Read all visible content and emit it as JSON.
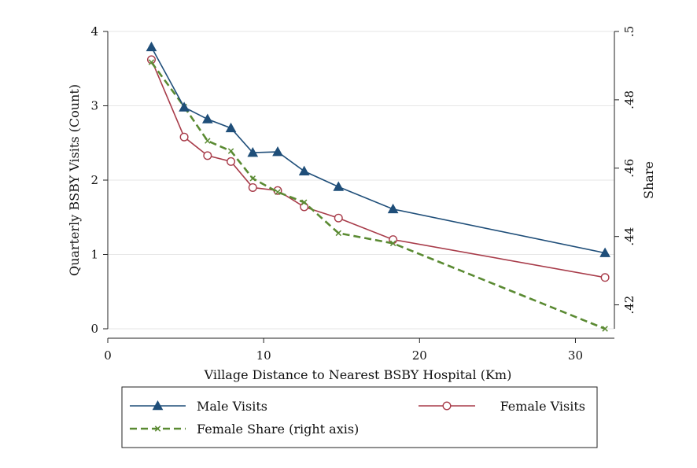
{
  "chart_data": {
    "type": "line",
    "title": "",
    "xlabel": "Village Distance to Nearest BSBY Hospital (Km)",
    "ylabel": "Quarterly BSBY Visits (Count)",
    "y2label": "Share",
    "xlim": [
      0,
      32.5
    ],
    "ylim": [
      0,
      4
    ],
    "y2lim": [
      0.413,
      0.5
    ],
    "x_ticks": [
      0,
      10,
      20,
      30
    ],
    "y_ticks": [
      0,
      1,
      2,
      3,
      4
    ],
    "y2_ticks": [
      ".42",
      ".44",
      ".46",
      ".48",
      ".5"
    ],
    "y2_tick_values": [
      0.42,
      0.44,
      0.46,
      0.48,
      0.5
    ],
    "grid": true,
    "legend_position": "bottom",
    "series": [
      {
        "name": "Male Visits",
        "axis": "left",
        "color": "#1f4e79",
        "marker": "triangle",
        "x": [
          2.8,
          4.9,
          6.4,
          7.9,
          9.3,
          10.9,
          12.6,
          14.8,
          18.3,
          31.9
        ],
        "y": [
          3.79,
          2.98,
          2.82,
          2.7,
          2.37,
          2.38,
          2.12,
          1.91,
          1.61,
          1.02
        ]
      },
      {
        "name": "Female Visits",
        "axis": "left",
        "color": "#a83c4a",
        "marker": "circle",
        "x": [
          2.8,
          4.9,
          6.4,
          7.9,
          9.3,
          10.9,
          12.6,
          14.8,
          18.3,
          31.9
        ],
        "y": [
          3.62,
          2.58,
          2.33,
          2.25,
          1.9,
          1.86,
          1.64,
          1.49,
          1.2,
          0.69
        ]
      },
      {
        "name": "Female Share (right axis)",
        "axis": "right",
        "color": "#5a8a32",
        "marker": "x",
        "dashed": true,
        "x": [
          2.8,
          4.9,
          6.4,
          7.9,
          9.3,
          10.9,
          12.6,
          14.8,
          18.3,
          31.9
        ],
        "y": [
          0.491,
          0.478,
          0.468,
          0.465,
          0.457,
          0.453,
          0.45,
          0.441,
          0.438,
          0.413
        ]
      }
    ]
  }
}
